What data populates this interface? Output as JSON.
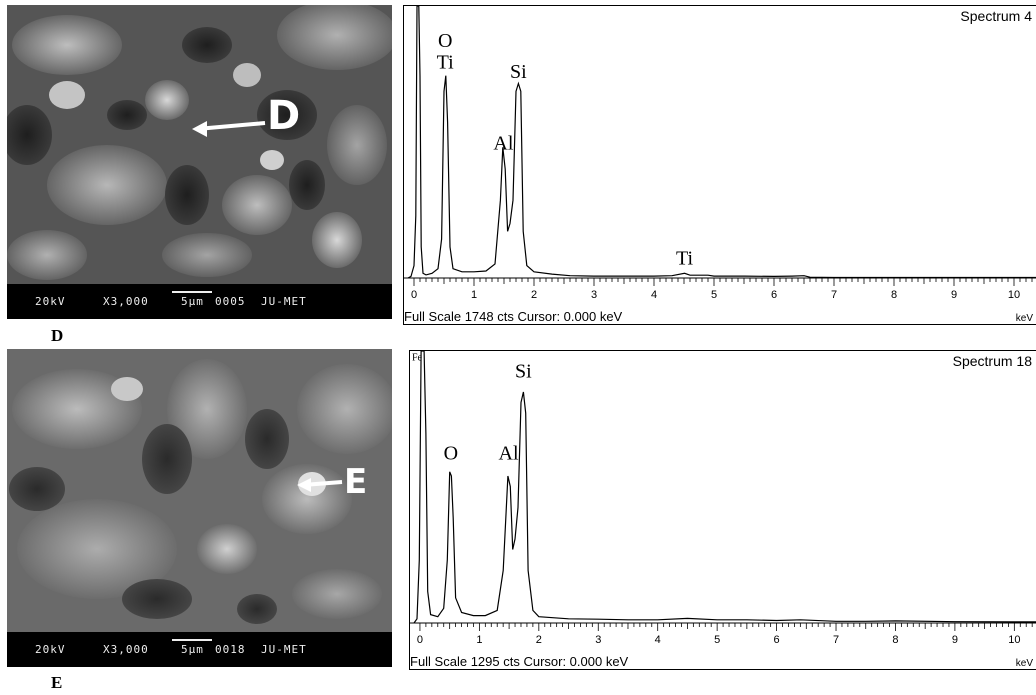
{
  "panels": {
    "D": {
      "label": "D",
      "sem": {
        "voltage": "20kV",
        "magnification": "X3,000",
        "scale": "5µm",
        "image_no": "0005",
        "lab": "JU-MET",
        "marker": "D"
      }
    },
    "E": {
      "label": "E",
      "sem": {
        "voltage": "20kV",
        "magnification": "X3,000",
        "scale": "5µm",
        "image_no": "0018",
        "lab": "JU-MET",
        "marker": "E"
      }
    }
  },
  "chart_data": [
    {
      "type": "line",
      "title": "Spectrum 4",
      "footer": "Full Scale 1748 cts Cursor: 0.000 keV",
      "unit": "keV",
      "x_ticks": [
        "0",
        "1",
        "2",
        "3",
        "4",
        "5",
        "6",
        "7",
        "8",
        "9",
        "10"
      ],
      "xlim": [
        -0.1,
        10.6
      ],
      "ylim": [
        0,
        1748
      ],
      "peak_labels": [
        {
          "text": "O",
          "x": 0.52,
          "y": 1460
        },
        {
          "text": "Ti",
          "x": 0.52,
          "y": 1320
        },
        {
          "text": "Si",
          "x": 1.74,
          "y": 1260
        },
        {
          "text": "Al",
          "x": 1.49,
          "y": 800
        },
        {
          "text": "Ti",
          "x": 4.51,
          "y": 60
        }
      ],
      "series": [
        {
          "points": [
            [
              -0.1,
              0
            ],
            [
              -0.05,
              10
            ],
            [
              0.0,
              80
            ],
            [
              0.03,
              400
            ],
            [
              0.05,
              1748
            ],
            [
              0.08,
              1748
            ],
            [
              0.1,
              1300
            ],
            [
              0.12,
              200
            ],
            [
              0.15,
              30
            ],
            [
              0.2,
              20
            ],
            [
              0.3,
              30
            ],
            [
              0.4,
              60
            ],
            [
              0.46,
              250
            ],
            [
              0.5,
              1200
            ],
            [
              0.53,
              1300
            ],
            [
              0.56,
              1000
            ],
            [
              0.6,
              200
            ],
            [
              0.65,
              60
            ],
            [
              0.8,
              40
            ],
            [
              1.0,
              40
            ],
            [
              1.2,
              45
            ],
            [
              1.35,
              90
            ],
            [
              1.44,
              500
            ],
            [
              1.48,
              840
            ],
            [
              1.52,
              700
            ],
            [
              1.56,
              300
            ],
            [
              1.6,
              350
            ],
            [
              1.65,
              500
            ],
            [
              1.7,
              1200
            ],
            [
              1.74,
              1250
            ],
            [
              1.78,
              1200
            ],
            [
              1.82,
              300
            ],
            [
              1.88,
              80
            ],
            [
              2.0,
              40
            ],
            [
              2.3,
              25
            ],
            [
              2.6,
              15
            ],
            [
              3.0,
              12
            ],
            [
              3.5,
              12
            ],
            [
              4.0,
              12
            ],
            [
              4.3,
              15
            ],
            [
              4.51,
              30
            ],
            [
              4.6,
              18
            ],
            [
              4.9,
              18
            ],
            [
              5.0,
              12
            ],
            [
              5.5,
              12
            ],
            [
              6.0,
              10
            ],
            [
              6.3,
              12
            ],
            [
              6.5,
              15
            ],
            [
              6.6,
              5
            ],
            [
              7.0,
              3
            ],
            [
              8.0,
              3
            ],
            [
              9.0,
              3
            ],
            [
              10.0,
              3
            ],
            [
              10.6,
              3
            ]
          ]
        }
      ]
    },
    {
      "type": "line",
      "title": "Spectrum 18",
      "footer": "Full Scale 1295 cts Cursor: 0.000 keV",
      "unit": "keV",
      "x_ticks": [
        "0",
        "1",
        "2",
        "3",
        "4",
        "5",
        "6",
        "7",
        "8",
        "9",
        "10"
      ],
      "xlim": [
        -0.1,
        10.6
      ],
      "ylim": [
        0,
        1295
      ],
      "peak_labels": [
        {
          "text": "Fe",
          "x": -0.05,
          "y": 1230
        },
        {
          "text": "O",
          "x": 0.52,
          "y": 760
        },
        {
          "text": "Al",
          "x": 1.49,
          "y": 760
        },
        {
          "text": "Si",
          "x": 1.74,
          "y": 1150
        }
      ],
      "series": [
        {
          "points": [
            [
              -0.1,
              0
            ],
            [
              -0.05,
              20
            ],
            [
              -0.01,
              300
            ],
            [
              0.02,
              1295
            ],
            [
              0.07,
              1295
            ],
            [
              0.1,
              900
            ],
            [
              0.13,
              150
            ],
            [
              0.18,
              40
            ],
            [
              0.3,
              30
            ],
            [
              0.4,
              70
            ],
            [
              0.46,
              300
            ],
            [
              0.5,
              720
            ],
            [
              0.53,
              700
            ],
            [
              0.56,
              500
            ],
            [
              0.6,
              120
            ],
            [
              0.7,
              50
            ],
            [
              0.9,
              35
            ],
            [
              1.1,
              35
            ],
            [
              1.3,
              60
            ],
            [
              1.4,
              250
            ],
            [
              1.48,
              700
            ],
            [
              1.52,
              650
            ],
            [
              1.56,
              350
            ],
            [
              1.6,
              400
            ],
            [
              1.65,
              550
            ],
            [
              1.7,
              1050
            ],
            [
              1.74,
              1100
            ],
            [
              1.78,
              1000
            ],
            [
              1.82,
              250
            ],
            [
              1.9,
              60
            ],
            [
              2.0,
              30
            ],
            [
              2.5,
              20
            ],
            [
              3.0,
              18
            ],
            [
              3.5,
              15
            ],
            [
              4.0,
              15
            ],
            [
              4.5,
              22
            ],
            [
              5.0,
              15
            ],
            [
              5.5,
              15
            ],
            [
              6.0,
              12
            ],
            [
              6.4,
              15
            ],
            [
              7.0,
              8
            ],
            [
              7.5,
              8
            ],
            [
              8.0,
              10
            ],
            [
              9.0,
              6
            ],
            [
              10.0,
              5
            ],
            [
              10.6,
              5
            ]
          ]
        }
      ]
    }
  ]
}
